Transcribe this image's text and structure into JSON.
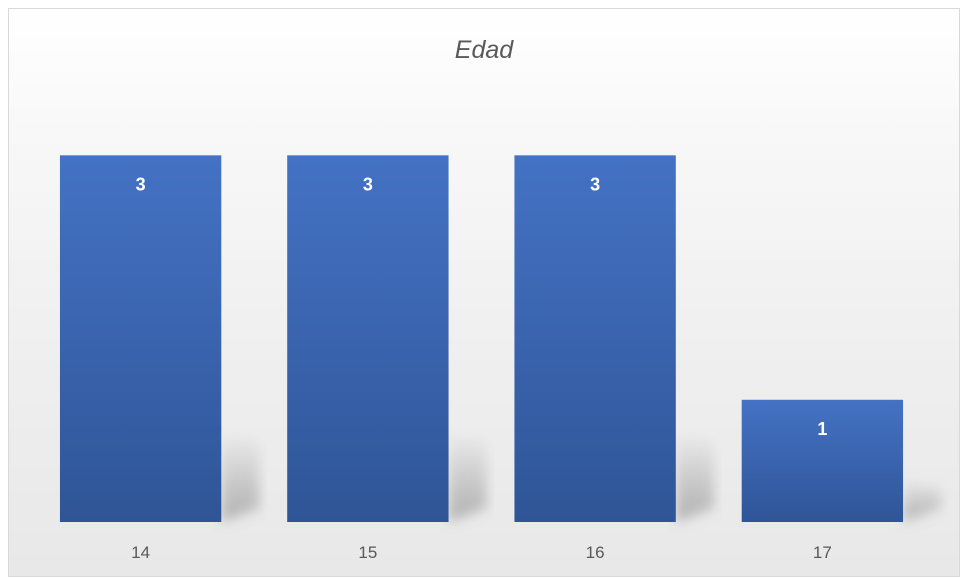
{
  "chart_data": {
    "type": "bar",
    "title": "Edad",
    "categories": [
      "14",
      "15",
      "16",
      "17"
    ],
    "values": [
      3,
      3,
      3,
      1
    ],
    "ylim": [
      0,
      3.6
    ],
    "grid": false,
    "legend": "none",
    "colors": {
      "bar_top": "#4472c4",
      "bar_bottom": "#2f5597",
      "data_label": "#ffffff",
      "tick_label": "#595959",
      "title": "#595959"
    }
  }
}
